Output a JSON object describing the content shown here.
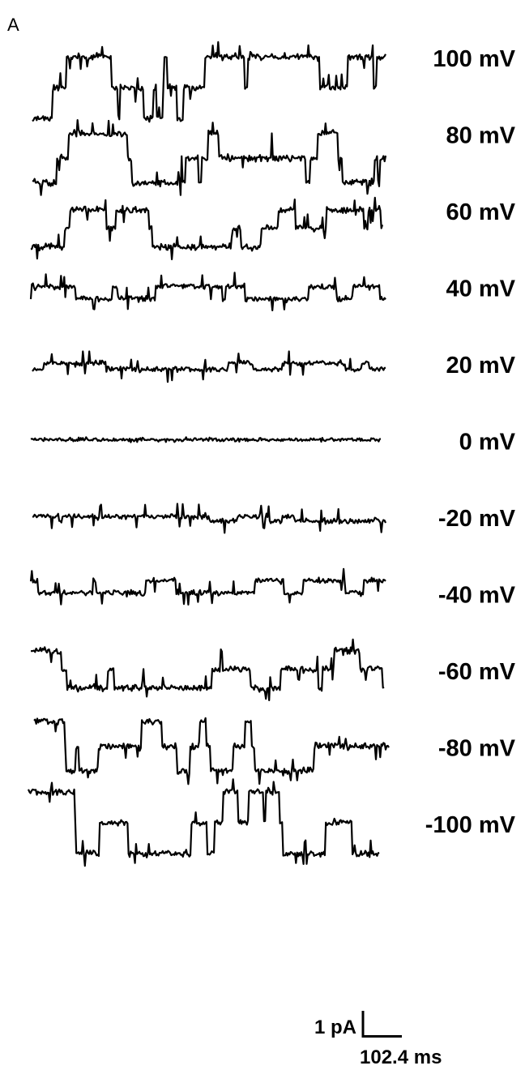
{
  "panel_label": "A",
  "chart_data": {
    "type": "line",
    "title": "",
    "xlabel": "",
    "ylabel": "",
    "grid": false,
    "series": [
      {
        "name": "100 mV",
        "levels": [
          0,
          -1.0,
          -2.0
        ],
        "baseline_level": -2.0
      },
      {
        "name": "80 mV",
        "levels": [
          0,
          -0.8,
          -1.6
        ],
        "baseline_level": -1.6
      },
      {
        "name": "60 mV",
        "levels": [
          0,
          -0.6,
          -1.2
        ],
        "baseline_level": -1.2
      },
      {
        "name": "40 mV",
        "levels": [
          0,
          -0.4
        ],
        "baseline_level": -0.4
      },
      {
        "name": "20 mV",
        "levels": [
          0,
          -0.2
        ],
        "baseline_level": -0.2
      },
      {
        "name": "0 mV",
        "levels": [
          0
        ],
        "baseline_level": 0
      },
      {
        "name": "-20 mV",
        "levels": [
          0,
          0.15
        ],
        "baseline_level": 0
      },
      {
        "name": "-40 mV",
        "levels": [
          0,
          0.4
        ],
        "baseline_level": 0.4
      },
      {
        "name": "-60 mV",
        "levels": [
          0,
          0.6,
          1.2
        ],
        "baseline_level": 0.6
      },
      {
        "name": "-80 mV",
        "levels": [
          0,
          0.8,
          1.6
        ],
        "baseline_level": 0.8
      },
      {
        "name": "-100 mV",
        "levels": [
          0,
          1.0,
          2.0
        ],
        "baseline_level": 1.0
      }
    ],
    "scale_bar": {
      "current_label": "1 pA",
      "time_label": "102.4 ms",
      "current_pA": 1,
      "time_ms": 102.4
    }
  }
}
